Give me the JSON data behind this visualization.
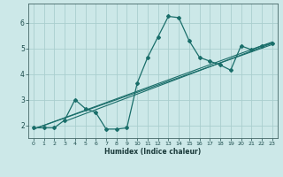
{
  "title": "",
  "xlabel": "Humidex (Indice chaleur)",
  "ylabel": "",
  "bg_color": "#cce8e8",
  "grid_color": "#aacece",
  "line_color": "#1a6e6a",
  "xlim": [
    -0.5,
    23.5
  ],
  "ylim": [
    1.5,
    6.75
  ],
  "xticks": [
    0,
    1,
    2,
    3,
    4,
    5,
    6,
    7,
    8,
    9,
    10,
    11,
    12,
    13,
    14,
    15,
    16,
    17,
    18,
    19,
    20,
    21,
    22,
    23
  ],
  "yticks": [
    2,
    3,
    4,
    5,
    6
  ],
  "main_x": [
    0,
    1,
    2,
    3,
    4,
    5,
    6,
    7,
    8,
    9,
    10,
    11,
    12,
    13,
    14,
    15,
    16,
    17,
    18,
    19,
    20,
    21,
    22,
    23
  ],
  "main_y": [
    1.9,
    1.9,
    1.9,
    2.2,
    3.0,
    2.65,
    2.5,
    1.85,
    1.85,
    1.9,
    3.65,
    4.65,
    5.45,
    6.25,
    6.2,
    5.3,
    4.65,
    4.5,
    4.35,
    4.15,
    5.1,
    4.95,
    5.1,
    5.2
  ],
  "line2_x": [
    0,
    23
  ],
  "line2_y": [
    1.85,
    5.15
  ],
  "line3_x": [
    0,
    23
  ],
  "line3_y": [
    1.85,
    5.25
  ],
  "line4_x": [
    3,
    23
  ],
  "line4_y": [
    2.15,
    5.2
  ],
  "figsize": [
    3.2,
    2.0
  ],
  "dpi": 100
}
